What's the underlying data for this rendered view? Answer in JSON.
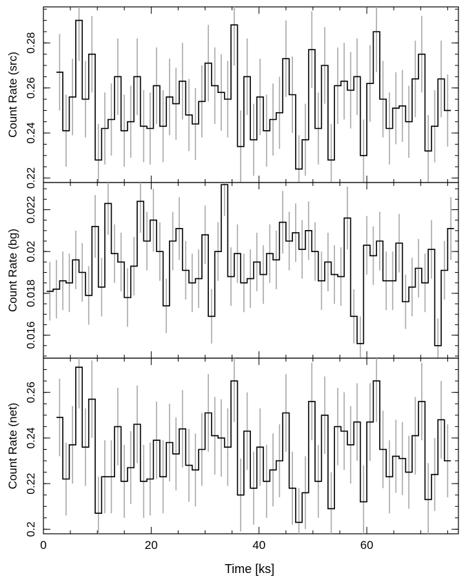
{
  "chart_data": {
    "type": "line",
    "style": "step-histogram with error bars",
    "shared_x": {
      "label": "Time [ks]",
      "lim": [
        0,
        77
      ],
      "ticks": [
        0,
        20,
        40,
        60
      ],
      "tick_labels": [
        "0",
        "20",
        "40",
        "60"
      ]
    },
    "panels": [
      {
        "ylabel": "Count Rate (src)",
        "ylim": [
          0.218,
          0.296
        ],
        "yticks": [
          0.22,
          0.24,
          0.26,
          0.28
        ],
        "ytick_labels": [
          "0.22",
          "0.24",
          "0.26",
          "0.28"
        ],
        "series": [
          {
            "x": [
              3.0,
              4.2,
              5.4,
              6.6,
              7.8,
              9.0,
              10.2,
              11.4,
              12.6,
              13.8,
              15.0,
              16.2,
              17.4,
              18.6,
              19.8,
              21.0,
              22.2,
              23.4,
              24.6,
              25.8,
              27.0,
              28.2,
              29.4,
              30.6,
              31.8,
              33.0,
              34.2,
              35.4,
              36.6,
              37.8,
              39.0,
              40.2,
              41.4,
              42.6,
              43.8,
              45.0,
              46.2,
              47.4,
              48.6,
              49.8,
              51.0,
              52.2,
              53.4,
              54.6,
              55.8,
              57.0,
              58.2,
              59.4,
              60.6,
              61.8,
              63.0,
              64.2,
              65.4,
              66.6,
              67.8,
              69.0,
              70.2,
              71.4,
              72.6,
              73.8,
              75.0
            ],
            "y": [
              0.267,
              0.241,
              0.256,
              0.29,
              0.255,
              0.275,
              0.228,
              0.242,
              0.246,
              0.265,
              0.241,
              0.245,
              0.265,
              0.243,
              0.242,
              0.261,
              0.243,
              0.256,
              0.253,
              0.263,
              0.248,
              0.244,
              0.254,
              0.271,
              0.261,
              0.258,
              0.255,
              0.288,
              0.234,
              0.265,
              0.237,
              0.256,
              0.241,
              0.246,
              0.249,
              0.273,
              0.257,
              0.224,
              0.237,
              0.277,
              0.242,
              0.27,
              0.228,
              0.261,
              0.263,
              0.259,
              0.265,
              0.23,
              0.262,
              0.285,
              0.255,
              0.242,
              0.251,
              0.252,
              0.245,
              0.264,
              0.275,
              0.232,
              0.243,
              0.264,
              0.25
            ],
            "err": [
              0.017,
              0.016,
              0.017,
              0.018,
              0.017,
              0.017,
              0.016,
              0.016,
              0.016,
              0.017,
              0.016,
              0.016,
              0.017,
              0.016,
              0.016,
              0.017,
              0.016,
              0.017,
              0.016,
              0.017,
              0.016,
              0.016,
              0.016,
              0.017,
              0.017,
              0.017,
              0.017,
              0.018,
              0.016,
              0.017,
              0.016,
              0.017,
              0.016,
              0.016,
              0.016,
              0.017,
              0.017,
              0.015,
              0.016,
              0.017,
              0.016,
              0.017,
              0.016,
              0.017,
              0.017,
              0.017,
              0.017,
              0.016,
              0.017,
              0.018,
              0.017,
              0.016,
              0.016,
              0.016,
              0.016,
              0.017,
              0.017,
              0.016,
              0.016,
              0.017,
              0.016
            ]
          }
        ]
      },
      {
        "ylabel": "Count Rate (bg)",
        "ylim": [
          0.0149,
          0.0233
        ],
        "yticks": [
          0.016,
          0.018,
          0.02,
          0.022
        ],
        "ytick_labels": [
          "0.016",
          "0.018",
          "0.02",
          "0.022"
        ],
        "series": [
          {
            "x": [
              1.2,
              2.4,
              3.6,
              4.8,
              6.0,
              7.2,
              8.4,
              9.6,
              10.8,
              12.0,
              13.2,
              14.4,
              15.6,
              16.8,
              18.0,
              19.2,
              20.4,
              21.6,
              22.8,
              24.0,
              25.2,
              26.4,
              27.6,
              28.8,
              30.0,
              31.2,
              32.4,
              33.6,
              34.8,
              36.0,
              37.2,
              38.4,
              39.6,
              40.8,
              42.0,
              43.2,
              44.4,
              45.6,
              46.8,
              48.0,
              49.2,
              50.4,
              51.6,
              52.8,
              54.0,
              55.2,
              56.4,
              57.6,
              58.8,
              60.0,
              61.2,
              62.4,
              63.6,
              64.8,
              66.0,
              67.2,
              68.4,
              69.6,
              70.8,
              72.0,
              73.2,
              74.4,
              75.6
            ],
            "y": [
              0.0181,
              0.0182,
              0.0186,
              0.0185,
              0.0196,
              0.019,
              0.0179,
              0.0212,
              0.0183,
              0.0223,
              0.0199,
              0.0195,
              0.0178,
              0.0193,
              0.0224,
              0.0205,
              0.0215,
              0.02,
              0.0174,
              0.0205,
              0.0211,
              0.0191,
              0.0185,
              0.0187,
              0.0208,
              0.0169,
              0.02,
              0.0232,
              0.0188,
              0.0199,
              0.0185,
              0.0187,
              0.0195,
              0.0189,
              0.0199,
              0.0196,
              0.0214,
              0.0205,
              0.0209,
              0.0201,
              0.021,
              0.02,
              0.0186,
              0.0195,
              0.0189,
              0.0188,
              0.0216,
              0.0169,
              0.0156,
              0.0203,
              0.0198,
              0.0205,
              0.0186,
              0.0186,
              0.0204,
              0.0176,
              0.0183,
              0.0192,
              0.0185,
              0.0201,
              0.0155,
              0.0191,
              0.0211
            ],
            "err": [
              0.0014,
              0.0014,
              0.0014,
              0.0014,
              0.0014,
              0.0014,
              0.0014,
              0.0015,
              0.0014,
              0.0015,
              0.0014,
              0.0014,
              0.0014,
              0.0014,
              0.0015,
              0.0014,
              0.0015,
              0.0014,
              0.0013,
              0.0014,
              0.0015,
              0.0014,
              0.0014,
              0.0014,
              0.0014,
              0.0013,
              0.0014,
              0.0015,
              0.0014,
              0.0014,
              0.0014,
              0.0014,
              0.0014,
              0.0014,
              0.0014,
              0.0014,
              0.0015,
              0.0014,
              0.0014,
              0.0014,
              0.0014,
              0.0014,
              0.0014,
              0.0014,
              0.0014,
              0.0014,
              0.0015,
              0.0013,
              0.0013,
              0.0014,
              0.0014,
              0.0014,
              0.0014,
              0.0014,
              0.0014,
              0.0013,
              0.0014,
              0.0014,
              0.0014,
              0.0014,
              0.0013,
              0.0014,
              0.0015
            ]
          }
        ]
      },
      {
        "ylabel": "Count Rate (net)",
        "ylim": [
          0.198,
          0.275
        ],
        "yticks": [
          0.2,
          0.22,
          0.24,
          0.26
        ],
        "ytick_labels": [
          "0.2",
          "0.22",
          "0.24",
          "0.26"
        ],
        "series": [
          {
            "x": [
              3.0,
              4.2,
              5.4,
              6.6,
              7.8,
              9.0,
              10.2,
              11.4,
              12.6,
              13.8,
              15.0,
              16.2,
              17.4,
              18.6,
              19.8,
              21.0,
              22.2,
              23.4,
              24.6,
              25.8,
              27.0,
              28.2,
              29.4,
              30.6,
              31.8,
              33.0,
              34.2,
              35.4,
              36.6,
              37.8,
              39.0,
              40.2,
              41.4,
              42.6,
              43.8,
              45.0,
              46.2,
              47.4,
              48.6,
              49.8,
              51.0,
              52.2,
              53.4,
              54.6,
              55.8,
              57.0,
              58.2,
              59.4,
              60.6,
              61.8,
              63.0,
              64.2,
              65.4,
              66.6,
              67.8,
              69.0,
              70.2,
              71.4,
              72.6,
              73.8,
              75.0
            ],
            "y": [
              0.249,
              0.222,
              0.237,
              0.271,
              0.236,
              0.257,
              0.207,
              0.223,
              0.223,
              0.245,
              0.221,
              0.227,
              0.246,
              0.221,
              0.222,
              0.239,
              0.223,
              0.238,
              0.233,
              0.244,
              0.228,
              0.226,
              0.235,
              0.251,
              0.241,
              0.24,
              0.236,
              0.265,
              0.215,
              0.243,
              0.218,
              0.236,
              0.221,
              0.226,
              0.23,
              0.251,
              0.218,
              0.203,
              0.216,
              0.256,
              0.221,
              0.25,
              0.209,
              0.245,
              0.243,
              0.237,
              0.247,
              0.212,
              0.247,
              0.265,
              0.235,
              0.223,
              0.232,
              0.231,
              0.225,
              0.241,
              0.256,
              0.213,
              0.224,
              0.248,
              0.23
            ],
            "err": [
              0.017,
              0.016,
              0.017,
              0.018,
              0.017,
              0.017,
              0.016,
              0.016,
              0.016,
              0.017,
              0.016,
              0.016,
              0.017,
              0.016,
              0.016,
              0.017,
              0.016,
              0.017,
              0.016,
              0.017,
              0.016,
              0.016,
              0.016,
              0.017,
              0.017,
              0.017,
              0.017,
              0.018,
              0.016,
              0.017,
              0.016,
              0.017,
              0.016,
              0.016,
              0.016,
              0.017,
              0.016,
              0.015,
              0.016,
              0.017,
              0.016,
              0.017,
              0.016,
              0.017,
              0.017,
              0.017,
              0.017,
              0.016,
              0.017,
              0.018,
              0.017,
              0.016,
              0.016,
              0.016,
              0.016,
              0.017,
              0.017,
              0.016,
              0.016,
              0.017,
              0.016
            ]
          }
        ]
      }
    ]
  },
  "colors": {
    "histogram": "#000000",
    "error_bars": "#a8a8a8",
    "axes": "#000000",
    "background": "#ffffff"
  }
}
